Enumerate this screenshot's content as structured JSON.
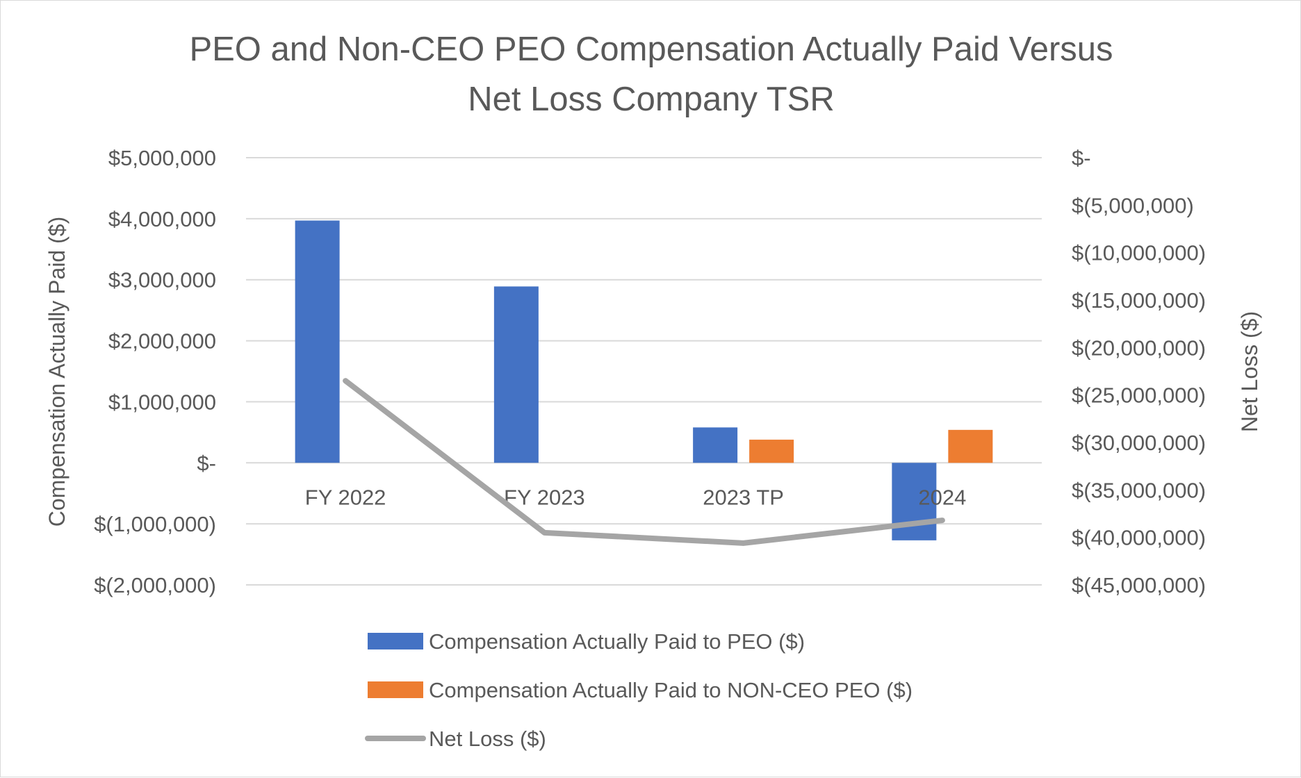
{
  "chart_data": {
    "type": "bar",
    "title_lines": [
      "PEO and Non-CEO PEO Compensation Actually Paid Versus",
      "Net Loss Company TSR"
    ],
    "categories": [
      "FY 2022",
      "FY 2023",
      "2023 TP",
      "2024"
    ],
    "ylabel": "Compensation Actually Paid ($)",
    "y2label": "Net Loss ($)",
    "ylim": [
      -2000000,
      5000000
    ],
    "y2lim": [
      -45000000,
      0
    ],
    "y_ticks": [
      {
        "value": 5000000,
        "label": "$5,000,000"
      },
      {
        "value": 4000000,
        "label": "$4,000,000"
      },
      {
        "value": 3000000,
        "label": "$3,000,000"
      },
      {
        "value": 2000000,
        "label": "$2,000,000"
      },
      {
        "value": 1000000,
        "label": "$1,000,000"
      },
      {
        "value": 0,
        "label": "$-"
      },
      {
        "value": -1000000,
        "label": "$(1,000,000)"
      },
      {
        "value": -2000000,
        "label": "$(2,000,000)"
      }
    ],
    "y2_ticks": [
      {
        "value": 0,
        "label": "$-"
      },
      {
        "value": -5000000,
        "label": "$(5,000,000)"
      },
      {
        "value": -10000000,
        "label": "$(10,000,000)"
      },
      {
        "value": -15000000,
        "label": "$(15,000,000)"
      },
      {
        "value": -20000000,
        "label": "$(20,000,000)"
      },
      {
        "value": -25000000,
        "label": "$(25,000,000)"
      },
      {
        "value": -30000000,
        "label": "$(30,000,000)"
      },
      {
        "value": -35000000,
        "label": "$(35,000,000)"
      },
      {
        "value": -40000000,
        "label": "$(40,000,000)"
      },
      {
        "value": -45000000,
        "label": "$(45,000,000)"
      }
    ],
    "grid": true,
    "legend_position": "bottom",
    "series": [
      {
        "name": "Compensation Actually Paid to PEO ($)",
        "kind": "bar",
        "axis": "left",
        "color": "#4472c4",
        "values": [
          3970000,
          2890000,
          580000,
          -1270000
        ]
      },
      {
        "name": "Compensation Actually Paid to NON-CEO PEO ($)",
        "kind": "bar",
        "axis": "left",
        "color": "#ed7d31",
        "values": [
          null,
          null,
          380000,
          540000
        ]
      },
      {
        "name": "Net Loss ($)",
        "kind": "line",
        "axis": "right",
        "color": "#a5a5a5",
        "values": [
          -23500000,
          -39500000,
          -40600000,
          -38200000
        ]
      }
    ]
  }
}
